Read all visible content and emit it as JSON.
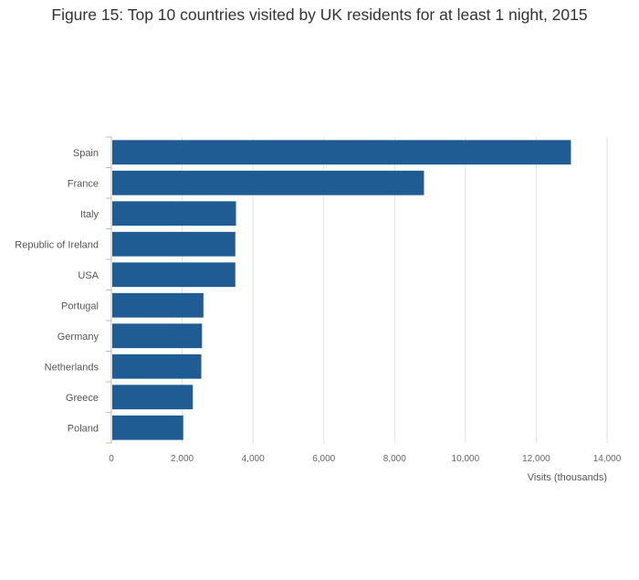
{
  "chart_data": {
    "type": "bar",
    "orientation": "horizontal",
    "title": "Figure 15: Top 10 countries visited by UK residents for at least 1 night, 2015",
    "categories": [
      "Spain",
      "France",
      "Italy",
      "Republic of Ireland",
      "USA",
      "Portugal",
      "Germany",
      "Netherlands",
      "Greece",
      "Poland"
    ],
    "values": [
      12980,
      8830,
      3520,
      3500,
      3500,
      2600,
      2560,
      2540,
      2300,
      2030
    ],
    "xlabel": "Visits (thousands)",
    "ylabel": "",
    "xlim": [
      0,
      14000
    ],
    "xticks": [
      0,
      2000,
      4000,
      6000,
      8000,
      10000,
      12000,
      14000
    ],
    "xtick_labels": [
      "0",
      "2,000",
      "4,000",
      "6,000",
      "8,000",
      "10,000",
      "12,000",
      "14,000"
    ],
    "grid": "vertical",
    "bar_color": "#1f5c94"
  }
}
